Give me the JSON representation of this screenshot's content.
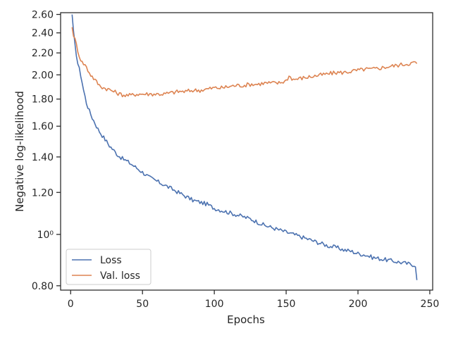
{
  "chart_data": {
    "type": "line",
    "xlabel": "Epochs",
    "ylabel": "Negative log-likelihood",
    "xlim": [
      -7,
      252
    ],
    "ylim": [
      0.785,
      2.62
    ],
    "yscale": "log",
    "xticks": [
      0,
      50,
      100,
      150,
      200,
      250
    ],
    "xtick_labels": [
      "0",
      "50",
      "100",
      "150",
      "200",
      "250"
    ],
    "yticks": [
      0.8,
      1.0,
      1.2,
      1.4,
      1.6,
      1.8,
      2.0,
      2.2,
      2.4,
      2.6
    ],
    "ytick_labels": [
      "0.80",
      "10⁰",
      "1.20",
      "1.40",
      "1.60",
      "1.80",
      "2.00",
      "2.20",
      "2.40",
      "2.60"
    ],
    "legend_position": "lower-left",
    "grid": false,
    "series": [
      {
        "name": "Loss",
        "color": "#4c72b0",
        "x": [
          1,
          2,
          3,
          5,
          7,
          9,
          11,
          13,
          15,
          17,
          19,
          21,
          24,
          27,
          30,
          33,
          36,
          40,
          45,
          50,
          55,
          60,
          65,
          70,
          75,
          80,
          85,
          90,
          95,
          100,
          105,
          110,
          115,
          120,
          125,
          130,
          135,
          140,
          145,
          150,
          155,
          160,
          165,
          170,
          175,
          180,
          185,
          190,
          195,
          200,
          205,
          210,
          215,
          220,
          225,
          230,
          235,
          240,
          241
        ],
        "values": [
          2.6,
          2.4,
          2.27,
          2.1,
          2.0,
          1.87,
          1.77,
          1.71,
          1.66,
          1.62,
          1.58,
          1.55,
          1.51,
          1.47,
          1.44,
          1.41,
          1.39,
          1.37,
          1.34,
          1.31,
          1.28,
          1.26,
          1.24,
          1.22,
          1.2,
          1.18,
          1.16,
          1.15,
          1.14,
          1.12,
          1.11,
          1.1,
          1.09,
          1.08,
          1.07,
          1.055,
          1.04,
          1.03,
          1.02,
          1.01,
          1.0,
          0.99,
          0.98,
          0.97,
          0.96,
          0.95,
          0.945,
          0.935,
          0.93,
          0.92,
          0.915,
          0.905,
          0.9,
          0.895,
          0.89,
          0.885,
          0.88,
          0.875,
          0.82
        ]
      },
      {
        "name": "Val. loss",
        "color": "#dd8452",
        "x": [
          1,
          2,
          4,
          6,
          8,
          10,
          12,
          14,
          16,
          18,
          20,
          23,
          26,
          30,
          34,
          38,
          42,
          46,
          50,
          55,
          60,
          65,
          70,
          75,
          80,
          85,
          90,
          95,
          100,
          105,
          110,
          115,
          120,
          125,
          130,
          135,
          140,
          145,
          150,
          152,
          155,
          160,
          165,
          170,
          175,
          180,
          185,
          190,
          195,
          200,
          205,
          210,
          215,
          220,
          225,
          230,
          235,
          240,
          241
        ],
        "values": [
          2.46,
          2.38,
          2.28,
          2.17,
          2.11,
          2.09,
          2.04,
          2.0,
          1.97,
          1.94,
          1.91,
          1.89,
          1.88,
          1.86,
          1.84,
          1.83,
          1.83,
          1.84,
          1.84,
          1.84,
          1.84,
          1.84,
          1.85,
          1.86,
          1.86,
          1.87,
          1.87,
          1.88,
          1.89,
          1.89,
          1.9,
          1.91,
          1.91,
          1.92,
          1.92,
          1.93,
          1.93,
          1.93,
          1.95,
          1.99,
          1.96,
          1.97,
          1.98,
          1.99,
          2.0,
          2.01,
          2.02,
          2.02,
          2.03,
          2.04,
          2.05,
          2.05,
          2.06,
          2.07,
          2.08,
          2.09,
          2.1,
          2.11,
          2.1
        ]
      }
    ]
  }
}
